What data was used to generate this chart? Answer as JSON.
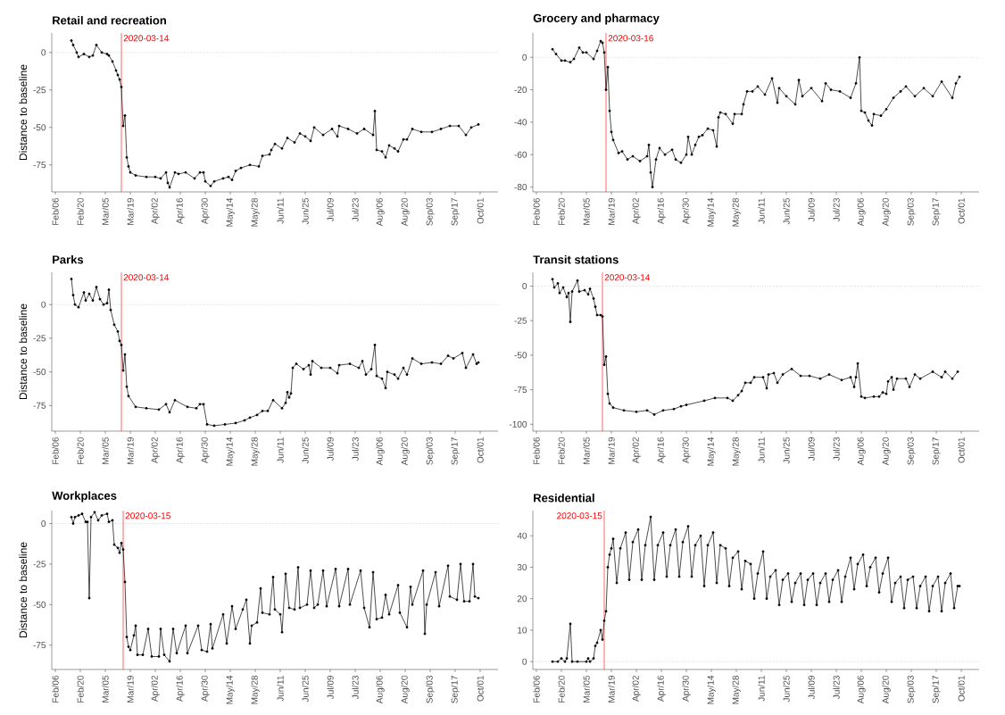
{
  "chart_data": [
    {
      "type": "line",
      "title": "Retail and recreation",
      "ylabel": "Distance to baseline",
      "color": "#000000",
      "marker": "circle",
      "line_style": "solid",
      "xlim": [
        "2020-02-04",
        "2020-10-11"
      ],
      "ylim": [
        -93,
        13
      ],
      "yticks": [
        0,
        -25,
        -50,
        -75
      ],
      "xticks": [
        {
          "value": "2020-02-06",
          "label": "Feb/06"
        },
        {
          "value": "2020-02-20",
          "label": "Feb/20"
        },
        {
          "value": "2020-03-05",
          "label": "Mar/05"
        },
        {
          "value": "2020-03-19",
          "label": "Mar/19"
        },
        {
          "value": "2020-04-02",
          "label": "Apr/02"
        },
        {
          "value": "2020-04-16",
          "label": "Apr/16"
        },
        {
          "value": "2020-04-30",
          "label": "Apr/30"
        },
        {
          "value": "2020-05-14",
          "label": "May/14"
        },
        {
          "value": "2020-05-28",
          "label": "May/28"
        },
        {
          "value": "2020-06-11",
          "label": "Jun/11"
        },
        {
          "value": "2020-06-25",
          "label": "Jun/25"
        },
        {
          "value": "2020-07-09",
          "label": "Jul/09"
        },
        {
          "value": "2020-07-23",
          "label": "Jul/23"
        },
        {
          "value": "2020-08-06",
          "label": "Aug/06"
        },
        {
          "value": "2020-08-20",
          "label": "Aug/20"
        },
        {
          "value": "2020-09-03",
          "label": "Sep/03"
        },
        {
          "value": "2020-09-17",
          "label": "Sep/17"
        },
        {
          "value": "2020-10-01",
          "label": "Oct/01"
        }
      ],
      "ref_lines": [
        {
          "axis": "y",
          "value": 0,
          "color": "#999999",
          "line_style": "dotted"
        },
        {
          "axis": "x",
          "value": "2020-03-14",
          "label": "2020-03-14",
          "color": "#ff0000",
          "line_style": "solid"
        }
      ],
      "x": [
        "2020-02-15",
        "2020-02-16",
        "2020-02-18",
        "2020-02-19",
        "2020-02-22",
        "2020-02-25",
        "2020-02-27",
        "2020-02-29",
        "2020-03-03",
        "2020-03-06",
        "2020-03-07",
        "2020-03-09",
        "2020-03-11",
        "2020-03-12",
        "2020-03-13",
        "2020-03-14",
        "2020-03-15",
        "2020-03-16",
        "2020-03-17",
        "2020-03-18",
        "2020-03-19",
        "2020-03-22",
        "2020-03-28",
        "2020-04-02",
        "2020-04-05",
        "2020-04-08",
        "2020-04-09",
        "2020-04-10",
        "2020-04-13",
        "2020-04-15",
        "2020-04-19",
        "2020-04-24",
        "2020-04-27",
        "2020-04-29",
        "2020-04-30",
        "2020-05-03",
        "2020-05-05",
        "2020-05-10",
        "2020-05-13",
        "2020-05-15",
        "2020-05-17",
        "2020-05-20",
        "2020-05-25",
        "2020-05-30",
        "2020-06-01",
        "2020-06-05",
        "2020-06-06",
        "2020-06-08",
        "2020-06-12",
        "2020-06-15",
        "2020-06-19",
        "2020-06-22",
        "2020-06-25",
        "2020-06-28",
        "2020-06-30",
        "2020-07-05",
        "2020-07-10",
        "2020-07-13",
        "2020-07-14",
        "2020-07-19",
        "2020-07-24",
        "2020-07-28",
        "2020-08-02",
        "2020-08-03",
        "2020-08-04",
        "2020-08-07",
        "2020-08-09",
        "2020-08-11",
        "2020-08-14",
        "2020-08-16",
        "2020-08-19",
        "2020-08-21",
        "2020-08-24",
        "2020-08-29",
        "2020-09-04",
        "2020-09-09",
        "2020-09-14",
        "2020-09-19",
        "2020-09-23",
        "2020-09-26",
        "2020-09-30"
      ],
      "values": [
        8,
        5,
        0,
        -3,
        -1,
        -3,
        -2,
        5,
        0,
        -1,
        -2,
        -6,
        -12,
        -15,
        -18,
        -23,
        -49,
        -42,
        -70,
        -76,
        -80,
        -82,
        -83,
        -83,
        -84,
        -80,
        -87,
        -90,
        -80,
        -81,
        -80,
        -84,
        -80,
        -80,
        -86,
        -89,
        -86,
        -84,
        -83,
        -85,
        -79,
        -77,
        -75,
        -76,
        -69,
        -68,
        -65,
        -61,
        -64,
        -57,
        -60,
        -54,
        -56,
        -59,
        -50,
        -55,
        -51,
        -56,
        -49,
        -51,
        -54,
        -51,
        -55,
        -39,
        -65,
        -66,
        -70,
        -62,
        -64,
        -66,
        -58,
        -58,
        -51,
        -53,
        -53,
        -51,
        -49,
        -49,
        -55,
        -50,
        -48
      ]
    },
    {
      "type": "line",
      "title": "Grocery and pharmacy",
      "color": "#000000",
      "marker": "circle",
      "line_style": "solid",
      "xlim": [
        "2020-02-04",
        "2020-10-11"
      ],
      "ylim": [
        -83,
        15
      ],
      "yticks": [
        0,
        -20,
        -40,
        -60,
        -80
      ],
      "xticks": [
        {
          "value": "2020-02-06",
          "label": "Feb/06"
        },
        {
          "value": "2020-02-20",
          "label": "Feb/20"
        },
        {
          "value": "2020-03-05",
          "label": "Mar/05"
        },
        {
          "value": "2020-03-19",
          "label": "Mar/19"
        },
        {
          "value": "2020-04-02",
          "label": "Apr/02"
        },
        {
          "value": "2020-04-16",
          "label": "Apr/16"
        },
        {
          "value": "2020-04-30",
          "label": "Apr/30"
        },
        {
          "value": "2020-05-14",
          "label": "May/14"
        },
        {
          "value": "2020-05-28",
          "label": "May/28"
        },
        {
          "value": "2020-06-11",
          "label": "Jun/11"
        },
        {
          "value": "2020-06-25",
          "label": "Jun/25"
        },
        {
          "value": "2020-07-09",
          "label": "Jul/09"
        },
        {
          "value": "2020-07-23",
          "label": "Jul/23"
        },
        {
          "value": "2020-08-06",
          "label": "Aug/06"
        },
        {
          "value": "2020-08-20",
          "label": "Aug/20"
        },
        {
          "value": "2020-09-03",
          "label": "Sep/03"
        },
        {
          "value": "2020-09-17",
          "label": "Sep/17"
        },
        {
          "value": "2020-10-01",
          "label": "Oct/01"
        }
      ],
      "ref_lines": [
        {
          "axis": "y",
          "value": 0,
          "color": "#999999",
          "line_style": "dotted"
        },
        {
          "axis": "x",
          "value": "2020-03-16",
          "label": "2020-03-16",
          "color": "#ff0000",
          "line_style": "solid"
        }
      ],
      "x": [
        "2020-02-15",
        "2020-02-17",
        "2020-02-20",
        "2020-02-22",
        "2020-02-25",
        "2020-02-27",
        "2020-03-01",
        "2020-03-03",
        "2020-03-05",
        "2020-03-09",
        "2020-03-11",
        "2020-03-13",
        "2020-03-14",
        "2020-03-15",
        "2020-03-16",
        "2020-03-17",
        "2020-03-18",
        "2020-03-19",
        "2020-03-20",
        "2020-03-23",
        "2020-03-25",
        "2020-03-28",
        "2020-03-31",
        "2020-04-04",
        "2020-04-08",
        "2020-04-09",
        "2020-04-10",
        "2020-04-11",
        "2020-04-13",
        "2020-04-15",
        "2020-04-18",
        "2020-04-22",
        "2020-04-24",
        "2020-04-27",
        "2020-04-30",
        "2020-05-01",
        "2020-05-03",
        "2020-05-05",
        "2020-05-07",
        "2020-05-09",
        "2020-05-12",
        "2020-05-15",
        "2020-05-17",
        "2020-05-18",
        "2020-05-19",
        "2020-05-22",
        "2020-05-26",
        "2020-05-27",
        "2020-05-31",
        "2020-06-01",
        "2020-06-03",
        "2020-06-06",
        "2020-06-09",
        "2020-06-13",
        "2020-06-17",
        "2020-06-20",
        "2020-06-21",
        "2020-06-25",
        "2020-06-30",
        "2020-07-02",
        "2020-07-04",
        "2020-07-09",
        "2020-07-15",
        "2020-07-17",
        "2020-07-20",
        "2020-07-25",
        "2020-07-31",
        "2020-08-03",
        "2020-08-05",
        "2020-08-06",
        "2020-08-08",
        "2020-08-10",
        "2020-08-12",
        "2020-08-13",
        "2020-08-17",
        "2020-08-20",
        "2020-08-24",
        "2020-08-28",
        "2020-08-31",
        "2020-09-05",
        "2020-09-10",
        "2020-09-15",
        "2020-09-20",
        "2020-09-26",
        "2020-09-28",
        "2020-09-30"
      ],
      "values": [
        5,
        2,
        -2,
        -2,
        -3,
        -1,
        6,
        3,
        3,
        -1,
        4,
        10,
        9,
        3,
        -20,
        -6,
        -33,
        -46,
        -51,
        -59,
        -58,
        -63,
        -61,
        -64,
        -61,
        -54,
        -71,
        -80,
        -63,
        -56,
        -60,
        -57,
        -63,
        -65,
        -60,
        -49,
        -60,
        -54,
        -49,
        -48,
        -44,
        -45,
        -55,
        -37,
        -34,
        -35,
        -41,
        -35,
        -35,
        -29,
        -21,
        -21,
        -18,
        -23,
        -13,
        -28,
        -19,
        -24,
        -29,
        -14,
        -24,
        -19,
        -27,
        -16,
        -20,
        -21,
        -25,
        -16,
        0,
        -33,
        -34,
        -39,
        -42,
        -35,
        -36,
        -32,
        -25,
        -21,
        -18,
        -24,
        -19,
        -24,
        -15,
        -25,
        -16,
        -12
      ]
    },
    {
      "type": "line",
      "title": "Parks",
      "ylabel": "Distance to baseline",
      "color": "#000000",
      "marker": "circle",
      "line_style": "solid",
      "xlim": [
        "2020-02-04",
        "2020-10-11"
      ],
      "ylim": [
        -94,
        24
      ],
      "yticks": [
        0,
        -25,
        -50,
        -75
      ],
      "xticks": [
        {
          "value": "2020-02-06",
          "label": "Feb/06"
        },
        {
          "value": "2020-02-20",
          "label": "Feb/20"
        },
        {
          "value": "2020-03-05",
          "label": "Mar/05"
        },
        {
          "value": "2020-03-19",
          "label": "Mar/19"
        },
        {
          "value": "2020-04-02",
          "label": "Apr/02"
        },
        {
          "value": "2020-04-16",
          "label": "Apr/16"
        },
        {
          "value": "2020-04-30",
          "label": "Apr/30"
        },
        {
          "value": "2020-05-14",
          "label": "May/14"
        },
        {
          "value": "2020-05-28",
          "label": "May/28"
        },
        {
          "value": "2020-06-11",
          "label": "Jun/11"
        },
        {
          "value": "2020-06-25",
          "label": "Jun/25"
        },
        {
          "value": "2020-07-09",
          "label": "Jul/09"
        },
        {
          "value": "2020-07-23",
          "label": "Jul/23"
        },
        {
          "value": "2020-08-06",
          "label": "Aug/06"
        },
        {
          "value": "2020-08-20",
          "label": "Aug/20"
        },
        {
          "value": "2020-09-03",
          "label": "Sep/03"
        },
        {
          "value": "2020-09-17",
          "label": "Sep/17"
        },
        {
          "value": "2020-10-01",
          "label": "Oct/01"
        }
      ],
      "ref_lines": [
        {
          "axis": "y",
          "value": 0,
          "color": "#999999",
          "line_style": "dotted"
        },
        {
          "axis": "x",
          "value": "2020-03-14",
          "label": "2020-03-14",
          "color": "#ff0000",
          "line_style": "solid"
        }
      ],
      "x": [
        "2020-02-15",
        "2020-02-16",
        "2020-02-17",
        "2020-02-19",
        "2020-02-22",
        "2020-02-23",
        "2020-02-25",
        "2020-02-27",
        "2020-02-29",
        "2020-03-02",
        "2020-03-04",
        "2020-03-06",
        "2020-03-07",
        "2020-03-08",
        "2020-03-10",
        "2020-03-12",
        "2020-03-13",
        "2020-03-14",
        "2020-03-15",
        "2020-03-16",
        "2020-03-17",
        "2020-03-18",
        "2020-03-22",
        "2020-03-28",
        "2020-04-04",
        "2020-04-08",
        "2020-04-10",
        "2020-04-13",
        "2020-04-20",
        "2020-04-25",
        "2020-04-27",
        "2020-04-29",
        "2020-05-01",
        "2020-05-05",
        "2020-05-11",
        "2020-05-17",
        "2020-05-22",
        "2020-05-25",
        "2020-05-29",
        "2020-06-01",
        "2020-06-04",
        "2020-06-07",
        "2020-06-12",
        "2020-06-14",
        "2020-06-15",
        "2020-06-16",
        "2020-06-17",
        "2020-06-18",
        "2020-06-20",
        "2020-06-24",
        "2020-06-27",
        "2020-06-28",
        "2020-06-29",
        "2020-07-04",
        "2020-07-09",
        "2020-07-13",
        "2020-07-14",
        "2020-07-20",
        "2020-07-25",
        "2020-07-27",
        "2020-07-29",
        "2020-08-01",
        "2020-08-03",
        "2020-08-04",
        "2020-08-07",
        "2020-08-09",
        "2020-08-10",
        "2020-08-14",
        "2020-08-16",
        "2020-08-19",
        "2020-08-21",
        "2020-08-24",
        "2020-08-29",
        "2020-09-04",
        "2020-09-09",
        "2020-09-13",
        "2020-09-16",
        "2020-09-21",
        "2020-09-23",
        "2020-09-27",
        "2020-09-29",
        "2020-09-30"
      ],
      "values": [
        19,
        7,
        0,
        -2,
        9,
        3,
        8,
        3,
        13,
        4,
        0,
        1,
        11,
        -4,
        -15,
        -20,
        -27,
        -30,
        -49,
        -37,
        -61,
        -68,
        -76,
        -77,
        -78,
        -74,
        -80,
        -71,
        -76,
        -77,
        -74,
        -74,
        -89,
        -90,
        -89,
        -88,
        -86,
        -84,
        -82,
        -79,
        -79,
        -71,
        -77,
        -73,
        -65,
        -69,
        -66,
        -47,
        -44,
        -48,
        -45,
        -52,
        -42,
        -47,
        -47,
        -51,
        -45,
        -44,
        -47,
        -42,
        -52,
        -48,
        -30,
        -53,
        -55,
        -62,
        -50,
        -52,
        -55,
        -47,
        -52,
        -40,
        -44,
        -43,
        -44,
        -38,
        -40,
        -36,
        -47,
        -37,
        -44,
        -43
      ]
    },
    {
      "type": "line",
      "title": "Transit stations",
      "color": "#000000",
      "marker": "circle",
      "line_style": "solid",
      "xlim": [
        "2020-02-04",
        "2020-10-11"
      ],
      "ylim": [
        -105,
        10
      ],
      "yticks": [
        0,
        -25,
        -50,
        -75,
        -100
      ],
      "xticks": [
        {
          "value": "2020-02-06",
          "label": "Feb/06"
        },
        {
          "value": "2020-02-20",
          "label": "Feb/20"
        },
        {
          "value": "2020-03-05",
          "label": "Mar/05"
        },
        {
          "value": "2020-03-19",
          "label": "Mar/19"
        },
        {
          "value": "2020-04-02",
          "label": "Apr/02"
        },
        {
          "value": "2020-04-16",
          "label": "Apr/16"
        },
        {
          "value": "2020-04-30",
          "label": "Apr/30"
        },
        {
          "value": "2020-05-14",
          "label": "May/14"
        },
        {
          "value": "2020-05-28",
          "label": "May/28"
        },
        {
          "value": "2020-06-11",
          "label": "Jun/11"
        },
        {
          "value": "2020-06-25",
          "label": "Jun/25"
        },
        {
          "value": "2020-07-09",
          "label": "Jul/09"
        },
        {
          "value": "2020-07-23",
          "label": "Jul/23"
        },
        {
          "value": "2020-08-06",
          "label": "Aug/06"
        },
        {
          "value": "2020-08-20",
          "label": "Aug/20"
        },
        {
          "value": "2020-09-03",
          "label": "Sep/03"
        },
        {
          "value": "2020-09-17",
          "label": "Sep/17"
        },
        {
          "value": "2020-10-01",
          "label": "Oct/01"
        }
      ],
      "ref_lines": [
        {
          "axis": "y",
          "value": 0,
          "color": "#999999",
          "line_style": "dotted"
        },
        {
          "axis": "x",
          "value": "2020-03-14",
          "label": "2020-03-14",
          "color": "#ff0000",
          "line_style": "solid"
        }
      ],
      "x": [
        "2020-02-15",
        "2020-02-16",
        "2020-02-18",
        "2020-02-19",
        "2020-02-21",
        "2020-02-23",
        "2020-02-24",
        "2020-02-25",
        "2020-02-26",
        "2020-02-29",
        "2020-03-01",
        "2020-03-04",
        "2020-03-06",
        "2020-03-07",
        "2020-03-09",
        "2020-03-10",
        "2020-03-11",
        "2020-03-13",
        "2020-03-14",
        "2020-03-15",
        "2020-03-16",
        "2020-03-17",
        "2020-03-18",
        "2020-03-20",
        "2020-03-26",
        "2020-04-02",
        "2020-04-08",
        "2020-04-12",
        "2020-04-17",
        "2020-04-23",
        "2020-04-27",
        "2020-04-30",
        "2020-05-10",
        "2020-05-16",
        "2020-05-23",
        "2020-05-26",
        "2020-05-29",
        "2020-05-31",
        "2020-06-02",
        "2020-06-05",
        "2020-06-07",
        "2020-06-12",
        "2020-06-14",
        "2020-06-15",
        "2020-06-18",
        "2020-06-20",
        "2020-06-23",
        "2020-06-28",
        "2020-07-03",
        "2020-07-08",
        "2020-07-14",
        "2020-07-19",
        "2020-07-26",
        "2020-07-31",
        "2020-08-02",
        "2020-08-03",
        "2020-08-04",
        "2020-08-06",
        "2020-08-08",
        "2020-08-13",
        "2020-08-16",
        "2020-08-18",
        "2020-08-20",
        "2020-08-21",
        "2020-08-23",
        "2020-08-24",
        "2020-08-26",
        "2020-08-31",
        "2020-09-02",
        "2020-09-05",
        "2020-09-08",
        "2020-09-15",
        "2020-09-20",
        "2020-09-22",
        "2020-09-26",
        "2020-09-29"
      ],
      "values": [
        5,
        -1,
        2,
        -5,
        -1,
        -8,
        -5,
        -26,
        -4,
        4,
        -4,
        -3,
        -6,
        -2,
        -9,
        -15,
        -21,
        -21,
        -22,
        -57,
        -51,
        -78,
        -85,
        -88,
        -90,
        -91,
        -90,
        -93,
        -90,
        -89,
        -87,
        -86,
        -83,
        -81,
        -81,
        -83,
        -79,
        -76,
        -70,
        -70,
        -66,
        -66,
        -74,
        -64,
        -63,
        -70,
        -64,
        -60,
        -65,
        -65,
        -67,
        -64,
        -68,
        -66,
        -73,
        -66,
        -56,
        -80,
        -81,
        -80,
        -80,
        -77,
        -78,
        -69,
        -66,
        -75,
        -67,
        -67,
        -73,
        -64,
        -67,
        -62,
        -66,
        -62,
        -67,
        -62
      ]
    },
    {
      "type": "line",
      "title": "Workplaces",
      "ylabel": "Distance to baseline",
      "color": "#000000",
      "marker": "circle",
      "line_style": "solid",
      "xlim": [
        "2020-02-04",
        "2020-10-11"
      ],
      "ylim": [
        -90,
        8
      ],
      "yticks": [
        0,
        -25,
        -50,
        -75
      ],
      "xticks": [
        {
          "value": "2020-02-06",
          "label": "Feb/06"
        },
        {
          "value": "2020-02-20",
          "label": "Feb/20"
        },
        {
          "value": "2020-03-05",
          "label": "Mar/05"
        },
        {
          "value": "2020-03-19",
          "label": "Mar/19"
        },
        {
          "value": "2020-04-02",
          "label": "Apr/02"
        },
        {
          "value": "2020-04-16",
          "label": "Apr/16"
        },
        {
          "value": "2020-04-30",
          "label": "Apr/30"
        },
        {
          "value": "2020-05-14",
          "label": "May/14"
        },
        {
          "value": "2020-05-28",
          "label": "May/28"
        },
        {
          "value": "2020-06-11",
          "label": "Jun/11"
        },
        {
          "value": "2020-06-25",
          "label": "Jun/25"
        },
        {
          "value": "2020-07-09",
          "label": "Jul/09"
        },
        {
          "value": "2020-07-23",
          "label": "Jul/23"
        },
        {
          "value": "2020-08-06",
          "label": "Aug/06"
        },
        {
          "value": "2020-08-20",
          "label": "Aug/20"
        },
        {
          "value": "2020-09-03",
          "label": "Sep/03"
        },
        {
          "value": "2020-09-17",
          "label": "Sep/17"
        },
        {
          "value": "2020-10-01",
          "label": "Oct/01"
        }
      ],
      "ref_lines": [
        {
          "axis": "y",
          "value": 0,
          "color": "#999999",
          "line_style": "dotted"
        },
        {
          "axis": "x",
          "value": "2020-03-15",
          "label": "2020-03-15",
          "color": "#ff0000",
          "line_style": "solid"
        }
      ],
      "x": [
        "2020-02-15",
        "2020-02-16",
        "2020-02-17",
        "2020-02-19",
        "2020-02-21",
        "2020-02-23",
        "2020-02-24",
        "2020-02-25",
        "2020-02-26",
        "2020-02-28",
        "2020-03-01",
        "2020-03-03",
        "2020-03-06",
        "2020-03-07",
        "2020-03-09",
        "2020-03-10",
        "2020-03-12",
        "2020-03-13",
        "2020-03-14",
        "2020-03-15",
        "2020-03-16",
        "2020-03-17",
        "2020-03-18",
        "2020-03-19",
        "2020-03-21",
        "2020-03-22",
        "2020-03-23",
        "2020-03-26",
        "2020-03-29",
        "2020-03-31",
        "2020-04-04",
        "2020-04-05",
        "2020-04-07",
        "2020-04-10",
        "2020-04-12",
        "2020-04-14",
        "2020-04-19",
        "2020-04-20",
        "2020-04-26",
        "2020-04-28",
        "2020-05-01",
        "2020-05-03",
        "2020-05-04",
        "2020-05-10",
        "2020-05-12",
        "2020-05-15",
        "2020-05-17",
        "2020-05-21",
        "2020-05-23",
        "2020-05-25",
        "2020-05-26",
        "2020-05-29",
        "2020-05-31",
        "2020-06-01",
        "2020-06-05",
        "2020-06-07",
        "2020-06-08",
        "2020-06-11",
        "2020-06-12",
        "2020-06-14",
        "2020-06-16",
        "2020-06-19",
        "2020-06-21",
        "2020-06-22",
        "2020-06-26",
        "2020-06-28",
        "2020-06-30",
        "2020-07-02",
        "2020-07-05",
        "2020-07-07",
        "2020-07-12",
        "2020-07-14",
        "2020-07-19",
        "2020-07-20",
        "2020-07-26",
        "2020-07-28",
        "2020-07-31",
        "2020-08-02",
        "2020-08-04",
        "2020-08-07",
        "2020-08-09",
        "2020-08-11",
        "2020-08-16",
        "2020-08-17",
        "2020-08-21",
        "2020-08-23",
        "2020-08-24",
        "2020-08-30",
        "2020-08-31",
        "2020-09-01",
        "2020-09-06",
        "2020-09-08",
        "2020-09-13",
        "2020-09-14",
        "2020-09-18",
        "2020-09-20",
        "2020-09-22",
        "2020-09-25",
        "2020-09-27",
        "2020-09-28",
        "2020-09-30"
      ],
      "values": [
        4,
        0,
        4,
        5,
        6,
        1,
        1,
        -46,
        4,
        7,
        2,
        5,
        6,
        1,
        2,
        -13,
        -15,
        -18,
        -12,
        -16,
        -36,
        -70,
        -76,
        -78,
        -69,
        -63,
        -81,
        -81,
        -65,
        -82,
        -82,
        -65,
        -81,
        -85,
        -65,
        -80,
        -63,
        -80,
        -63,
        -78,
        -79,
        -62,
        -77,
        -56,
        -74,
        -51,
        -65,
        -53,
        -47,
        -74,
        -63,
        -61,
        -40,
        -55,
        -56,
        -33,
        -53,
        -56,
        -67,
        -31,
        -52,
        -53,
        -27,
        -52,
        -50,
        -29,
        -52,
        -50,
        -29,
        -51,
        -28,
        -51,
        -28,
        -50,
        -29,
        -52,
        -64,
        -30,
        -59,
        -58,
        -44,
        -56,
        -38,
        -55,
        -64,
        -39,
        -50,
        -29,
        -68,
        -50,
        -30,
        -51,
        -26,
        -45,
        -47,
        -25,
        -48,
        -48,
        -25,
        -45,
        -46
      ]
    },
    {
      "type": "line",
      "title": "Residential",
      "color": "#000000",
      "marker": "circle",
      "line_style": "solid",
      "xlim": [
        "2020-02-04",
        "2020-10-11"
      ],
      "ylim": [
        -2.5,
        48
      ],
      "yticks": [
        0,
        10,
        20,
        30,
        40
      ],
      "xticks": [
        {
          "value": "2020-02-06",
          "label": "Feb/06"
        },
        {
          "value": "2020-02-20",
          "label": "Feb/20"
        },
        {
          "value": "2020-03-05",
          "label": "Mar/05"
        },
        {
          "value": "2020-03-19",
          "label": "Mar/19"
        },
        {
          "value": "2020-04-02",
          "label": "Apr/02"
        },
        {
          "value": "2020-04-16",
          "label": "Apr/16"
        },
        {
          "value": "2020-04-30",
          "label": "Apr/30"
        },
        {
          "value": "2020-05-14",
          "label": "May/14"
        },
        {
          "value": "2020-05-28",
          "label": "May/28"
        },
        {
          "value": "2020-06-11",
          "label": "Jun/11"
        },
        {
          "value": "2020-06-25",
          "label": "Jun/25"
        },
        {
          "value": "2020-07-09",
          "label": "Jul/09"
        },
        {
          "value": "2020-07-23",
          "label": "Jul/23"
        },
        {
          "value": "2020-08-06",
          "label": "Aug/06"
        },
        {
          "value": "2020-08-20",
          "label": "Aug/20"
        },
        {
          "value": "2020-09-03",
          "label": "Sep/03"
        },
        {
          "value": "2020-09-17",
          "label": "Sep/17"
        },
        {
          "value": "2020-10-01",
          "label": "Oct/01"
        }
      ],
      "ref_lines": [
        {
          "axis": "y",
          "value": 0,
          "color": "#999999",
          "line_style": "dotted"
        },
        {
          "axis": "x",
          "value": "2020-03-15",
          "label": "2020-03-15",
          "color": "#ff0000",
          "line_style": "solid"
        }
      ],
      "x": [
        "2020-02-15",
        "2020-02-18",
        "2020-02-20",
        "2020-02-22",
        "2020-02-23",
        "2020-02-25",
        "2020-02-26",
        "2020-02-29",
        "2020-03-05",
        "2020-03-06",
        "2020-03-07",
        "2020-03-09",
        "2020-03-10",
        "2020-03-11",
        "2020-03-13",
        "2020-03-14",
        "2020-03-15",
        "2020-03-16",
        "2020-03-17",
        "2020-03-18",
        "2020-03-19",
        "2020-03-20",
        "2020-03-22",
        "2020-03-24",
        "2020-03-27",
        "2020-03-29",
        "2020-03-31",
        "2020-04-03",
        "2020-04-05",
        "2020-04-07",
        "2020-04-10",
        "2020-04-12",
        "2020-04-14",
        "2020-04-17",
        "2020-04-19",
        "2020-04-21",
        "2020-04-24",
        "2020-04-26",
        "2020-04-28",
        "2020-05-01",
        "2020-05-03",
        "2020-05-05",
        "2020-05-08",
        "2020-05-10",
        "2020-05-12",
        "2020-05-15",
        "2020-05-17",
        "2020-05-19",
        "2020-05-22",
        "2020-05-24",
        "2020-05-26",
        "2020-05-29",
        "2020-05-31",
        "2020-06-02",
        "2020-06-05",
        "2020-06-07",
        "2020-06-09",
        "2020-06-12",
        "2020-06-14",
        "2020-06-16",
        "2020-06-19",
        "2020-06-21",
        "2020-06-23",
        "2020-06-26",
        "2020-06-28",
        "2020-06-30",
        "2020-07-03",
        "2020-07-05",
        "2020-07-07",
        "2020-07-10",
        "2020-07-12",
        "2020-07-14",
        "2020-07-17",
        "2020-07-19",
        "2020-07-21",
        "2020-07-24",
        "2020-07-26",
        "2020-07-28",
        "2020-07-31",
        "2020-08-02",
        "2020-08-04",
        "2020-08-07",
        "2020-08-09",
        "2020-08-11",
        "2020-08-14",
        "2020-08-16",
        "2020-08-18",
        "2020-08-21",
        "2020-08-23",
        "2020-08-25",
        "2020-08-28",
        "2020-08-30",
        "2020-09-01",
        "2020-09-04",
        "2020-09-06",
        "2020-09-08",
        "2020-09-11",
        "2020-09-13",
        "2020-09-15",
        "2020-09-18",
        "2020-09-20",
        "2020-09-22",
        "2020-09-25",
        "2020-09-27",
        "2020-09-29",
        "2020-09-30"
      ],
      "values": [
        0,
        0,
        1,
        0,
        1,
        12,
        0,
        0,
        0,
        1,
        0,
        1,
        5,
        6,
        10,
        7,
        13,
        16,
        30,
        34,
        36,
        39,
        25,
        36,
        41,
        26,
        38,
        42,
        26,
        37,
        46,
        26,
        37,
        41,
        27,
        37,
        42,
        27,
        38,
        43,
        27,
        37,
        40,
        24,
        37,
        41,
        25,
        37,
        36,
        24,
        33,
        35,
        23,
        32,
        31,
        20,
        28,
        35,
        20,
        27,
        29,
        18,
        26,
        28,
        19,
        25,
        28,
        18,
        26,
        28,
        18,
        25,
        28,
        19,
        26,
        29,
        19,
        27,
        33,
        23,
        31,
        34,
        24,
        30,
        33,
        22,
        28,
        33,
        19,
        25,
        27,
        17,
        26,
        27,
        17,
        24,
        27,
        16,
        24,
        27,
        16,
        25,
        28,
        17,
        24,
        24
      ]
    }
  ]
}
